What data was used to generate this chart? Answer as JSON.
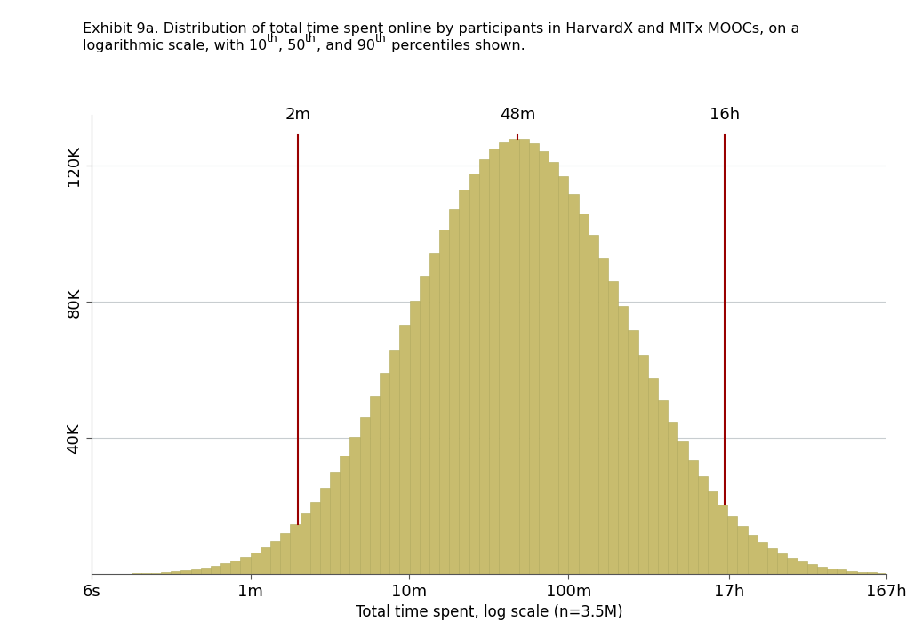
{
  "title_line1": "Exhibit 9a. Distribution of total time spent online by participants in HarvardX and MITx MOOCs, on a",
  "title_line2_pre": "logarithmic scale, with 10",
  "title_line2_sup1": "th",
  "title_line2_mid1": ", 50",
  "title_line2_sup2": "th",
  "title_line2_mid2": ", and 90",
  "title_line2_sup3": "th",
  "title_line2_end": " percentiles shown.",
  "xlabel": "Total time spent, log scale (n=3.5M)",
  "bar_color": "#c8bc6e",
  "bar_edge_color": "#b0a95a",
  "background_color": "#ffffff",
  "grid_color": "#c8cdd0",
  "percentile_line_color": "#990000",
  "percentile_10_label": "2m",
  "percentile_50_label": "48m",
  "percentile_90_label": "16h",
  "percentile_10_x_sec": 120,
  "percentile_50_x_sec": 2880,
  "percentile_90_x_sec": 57600,
  "x_tick_labels": [
    "6s",
    "1m",
    "10m",
    "100m",
    "17h",
    "167h"
  ],
  "x_tick_values_seconds": [
    6,
    60,
    600,
    6000,
    61200,
    601200
  ],
  "ytick_labels": [
    "40K",
    "80K",
    "120K"
  ],
  "ytick_values": [
    40000,
    80000,
    120000
  ],
  "ylim": [
    0,
    135000
  ],
  "dist_mean_log": 7.965,
  "dist_std_log": 1.55,
  "n_bars": 80,
  "peak_height": 128000,
  "title_color": "#000000",
  "tick_label_color": "#000000",
  "label_fontsize": 12,
  "tick_fontsize": 13
}
